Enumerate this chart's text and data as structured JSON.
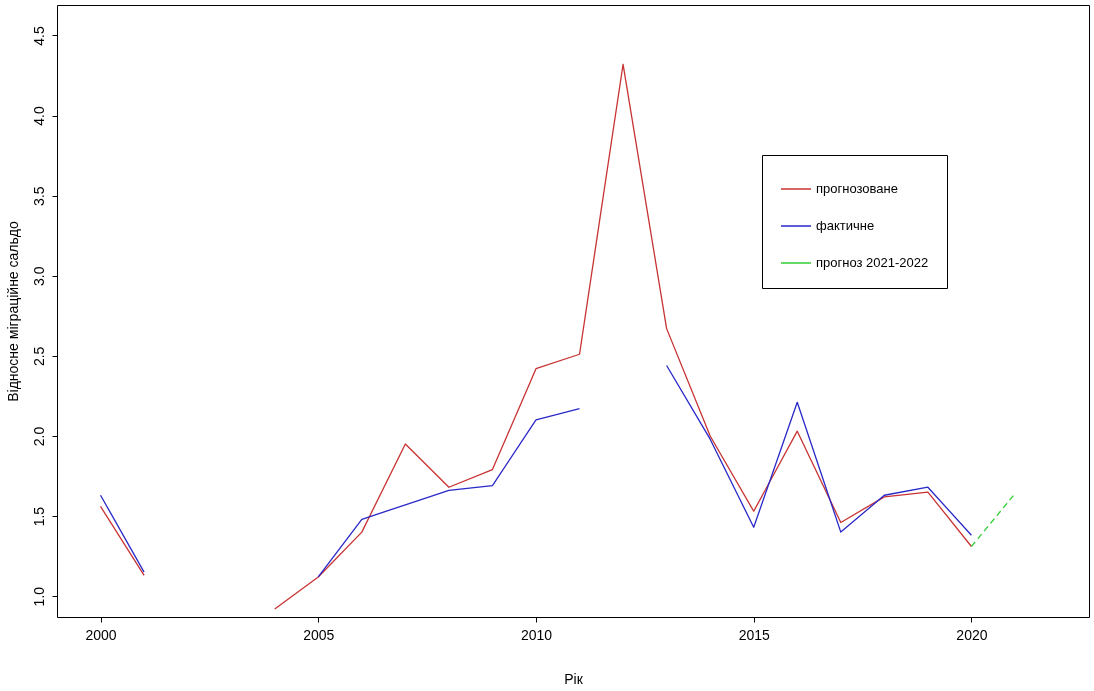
{
  "chart_data": {
    "type": "line",
    "xlabel": "Рік",
    "ylabel": "Відносне міграційне сальдо",
    "xlim": [
      1999.0,
      2022.7
    ],
    "ylim": [
      0.87,
      4.69
    ],
    "xticks": [
      2000,
      2005,
      2010,
      2015,
      2020
    ],
    "yticks": [
      {
        "value": 1,
        "label": "1.0"
      },
      1.5,
      {
        "value": 2,
        "label": "2.0"
      },
      2.5,
      {
        "value": 3,
        "label": "3.0"
      },
      3.5,
      {
        "value": 4,
        "label": "4.0"
      },
      4.5
    ],
    "grid": false,
    "legend": "right",
    "marker": "none",
    "series": [
      {
        "name": "прогнозоване",
        "color": "#c83232",
        "line_style": "solid",
        "x": [
          2000,
          2001,
          2002,
          2003,
          2004,
          2005,
          2006,
          2007,
          2008,
          2009,
          2010,
          2011,
          2012,
          2013,
          2014,
          2015,
          2016,
          2017,
          2018,
          2019,
          2020
        ],
        "values": [
          1.56,
          1.13,
          null,
          null,
          0.92,
          1.12,
          1.4,
          1.95,
          1.68,
          1.79,
          2.42,
          2.51,
          4.32,
          2.67,
          2.0,
          1.53,
          2.03,
          1.46,
          1.62,
          1.65,
          1.31
        ]
      },
      {
        "name": "фактичне",
        "color": "#2828c8",
        "line_style": "solid",
        "x": [
          2000,
          2001,
          2002,
          2003,
          2004,
          2005,
          2006,
          2007,
          2008,
          2009,
          2010,
          2011,
          2012,
          2013,
          2014,
          2015,
          2016,
          2017,
          2018,
          2019,
          2020
        ],
        "values": [
          1.63,
          1.15,
          null,
          null,
          null,
          1.12,
          1.48,
          1.57,
          1.66,
          1.69,
          2.1,
          2.17,
          null,
          2.44,
          1.98,
          1.43,
          2.21,
          1.4,
          1.63,
          1.68,
          1.38
        ]
      },
      {
        "name": "прогноз 2021-2022",
        "color": "#32cd32",
        "line_style": "dashed",
        "x": [
          2020,
          2021
        ],
        "values": [
          1.31,
          1.64
        ]
      }
    ]
  }
}
